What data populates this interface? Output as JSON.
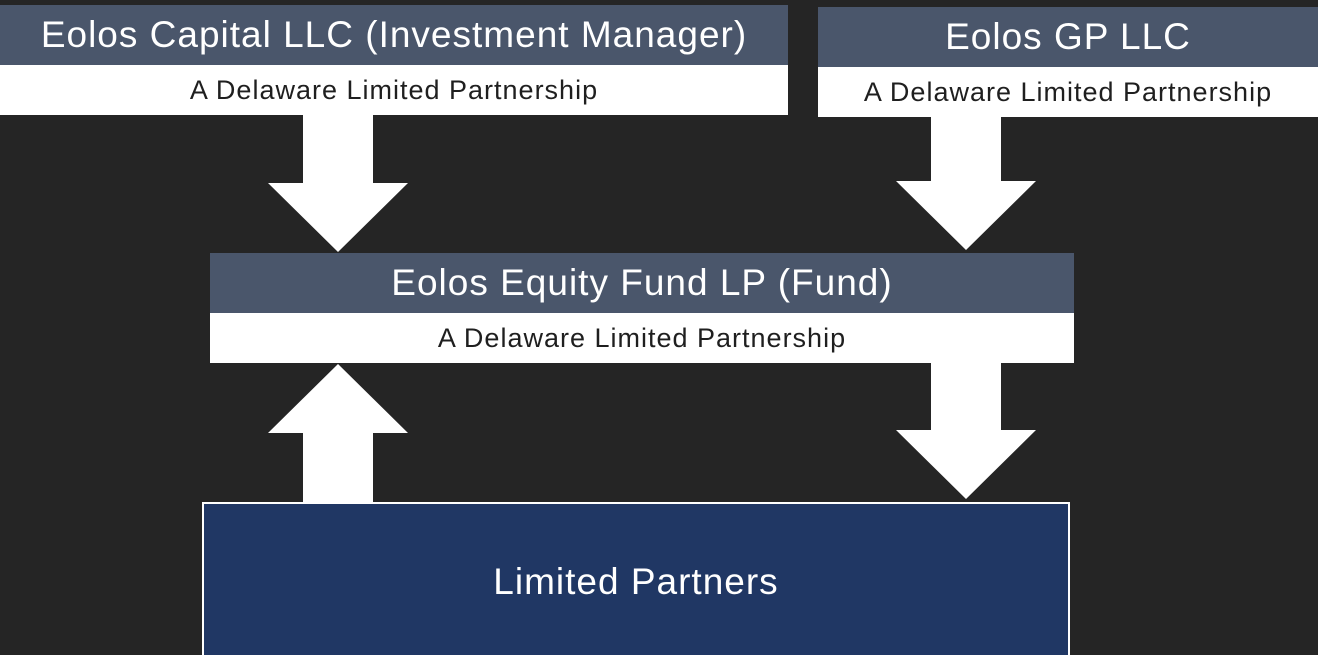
{
  "colors": {
    "background": "#252525",
    "entity_header": "#4a566b",
    "subtitle_band": "#ffffff",
    "limited_partners_fill": "#203764",
    "arrow": "#ffffff"
  },
  "investment_manager": {
    "title": "Eolos Capital LLC (Investment Manager)",
    "subtitle": "A Delaware Limited Partnership"
  },
  "general_partner": {
    "title": "Eolos GP LLC",
    "subtitle": "A Delaware Limited Partnership"
  },
  "fund": {
    "title": "Eolos Equity Fund LP (Fund)",
    "subtitle": "A Delaware Limited Partnership"
  },
  "limited_partners": {
    "title": "Limited Partners"
  },
  "arrows": [
    {
      "from": "investment_manager",
      "to": "fund",
      "direction": "down",
      "icon": "arrow-down-icon"
    },
    {
      "from": "general_partner",
      "to": "fund",
      "direction": "down",
      "icon": "arrow-down-icon"
    },
    {
      "from": "limited_partners",
      "to": "fund",
      "direction": "up",
      "icon": "arrow-up-icon"
    },
    {
      "from": "fund",
      "to": "limited_partners",
      "direction": "down",
      "icon": "arrow-down-icon"
    }
  ]
}
